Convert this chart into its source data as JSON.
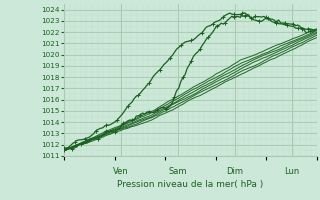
{
  "xlabel": "Pression niveau de la mer( hPa )",
  "bg_color": "#cce8d8",
  "grid_color_major": "#a8c8b0",
  "grid_color_minor": "#c0dcc8",
  "line_color": "#1a6020",
  "tick_label_color": "#1a6020",
  "axis_label_color": "#1a6020",
  "ylim": [
    1011,
    1024.5
  ],
  "yticks": [
    1011,
    1012,
    1013,
    1014,
    1015,
    1016,
    1017,
    1018,
    1019,
    1020,
    1021,
    1022,
    1023,
    1024
  ],
  "day_labels": [
    "Ven",
    "Sam",
    "Dim",
    "Lun"
  ],
  "day_positions": [
    0.225,
    0.45,
    0.675,
    0.9
  ],
  "total_points": 120
}
